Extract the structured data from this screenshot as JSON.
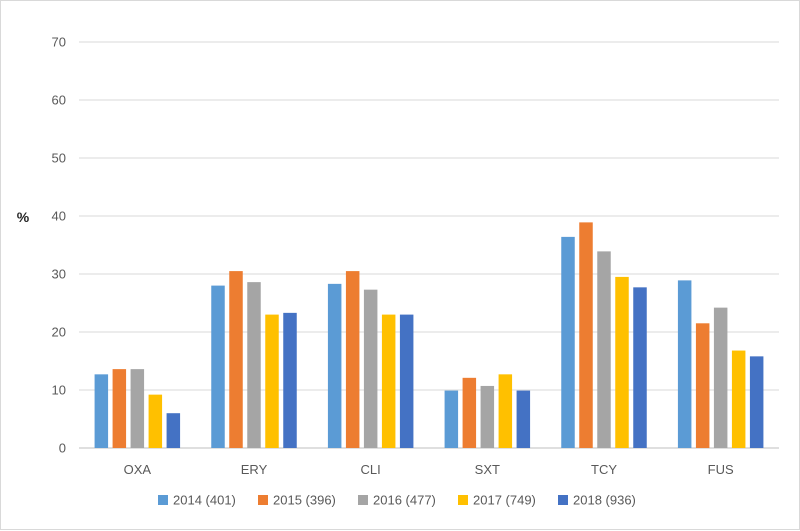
{
  "chart_data": {
    "type": "bar",
    "title": "",
    "xlabel": "",
    "ylabel": "%",
    "ylim": [
      0,
      70
    ],
    "yticks": [
      0,
      10,
      20,
      30,
      40,
      50,
      60,
      70
    ],
    "grid": true,
    "legend_position": "bottom",
    "categories": [
      "OXA",
      "ERY",
      "CLI",
      "SXT",
      "TCY",
      "FUS"
    ],
    "series": [
      {
        "name": "2014 (401)",
        "color": "#5B9BD5",
        "values": [
          12.7,
          28.0,
          28.3,
          9.9,
          36.4,
          28.9
        ]
      },
      {
        "name": "2015 (396)",
        "color": "#ED7D31",
        "values": [
          13.6,
          30.5,
          30.5,
          12.1,
          38.9,
          21.5
        ]
      },
      {
        "name": "2016 (477)",
        "color": "#A5A5A5",
        "values": [
          13.6,
          28.6,
          27.3,
          10.7,
          33.9,
          24.2
        ]
      },
      {
        "name": "2017 (749)",
        "color": "#FFC000",
        "values": [
          9.2,
          23.0,
          23.0,
          12.7,
          29.5,
          16.8
        ]
      },
      {
        "name": "2018 (936)",
        "color": "#4472C4",
        "values": [
          6.0,
          23.3,
          23.0,
          9.9,
          27.7,
          15.8
        ]
      }
    ]
  }
}
